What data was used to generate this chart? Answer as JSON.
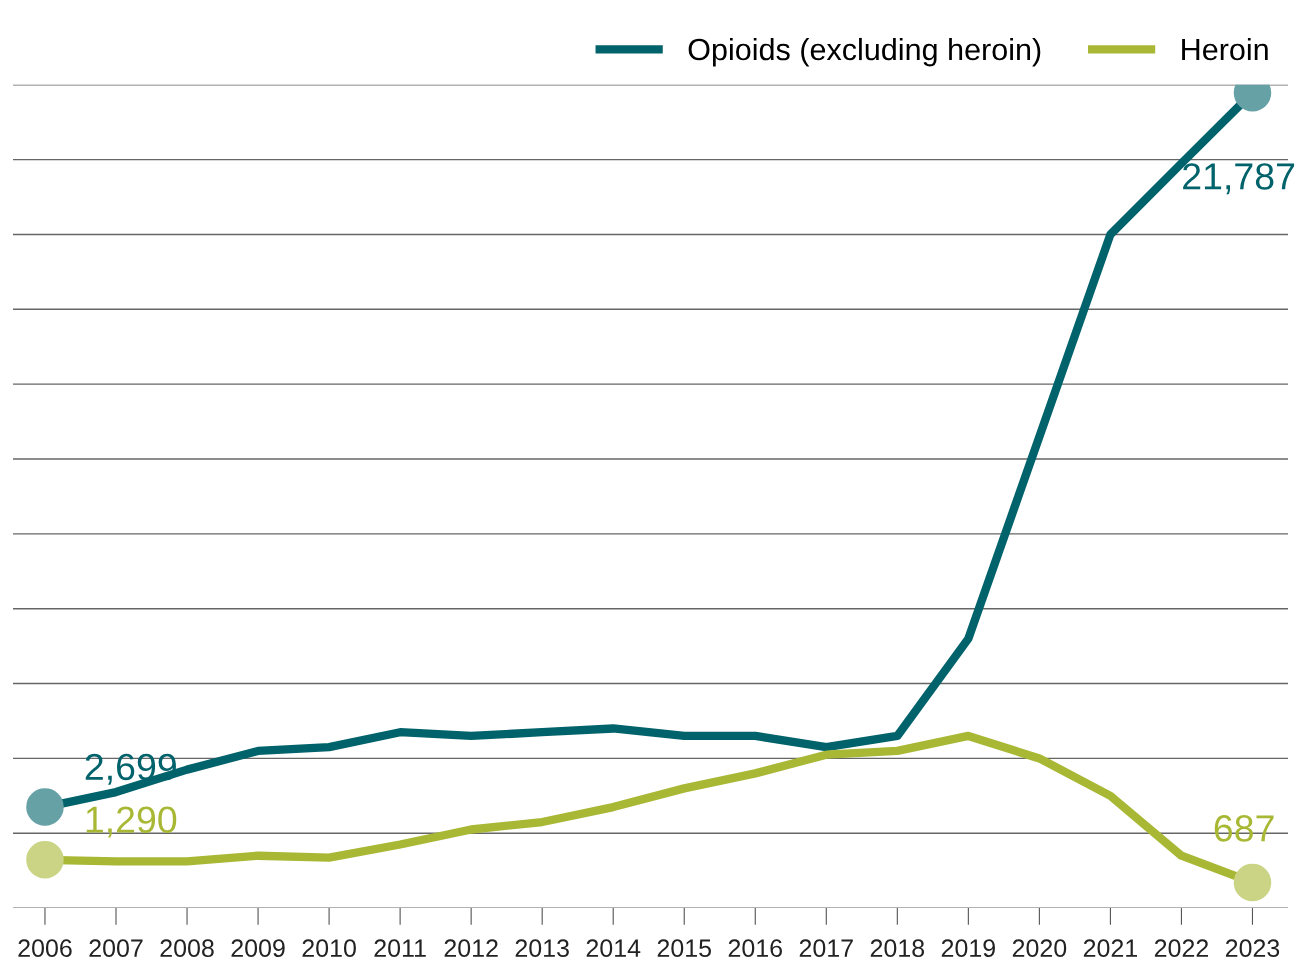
{
  "chart_data": {
    "type": "line",
    "categories": [
      "2006",
      "2007",
      "2008",
      "2009",
      "2010",
      "2011",
      "2012",
      "2013",
      "2014",
      "2015",
      "2016",
      "2017",
      "2018",
      "2019",
      "2020",
      "2021",
      "2022",
      "2023"
    ],
    "series": [
      {
        "name": "Opioids (excluding heroin)",
        "color": "#00626a",
        "values": [
          2699,
          3100,
          3700,
          4200,
          4300,
          4700,
          4600,
          4700,
          4800,
          4600,
          4600,
          4300,
          4600,
          7200,
          12600,
          18000,
          19900,
          21787
        ],
        "value_labels": [
          "2,699",
          null,
          null,
          null,
          null,
          null,
          null,
          null,
          null,
          null,
          null,
          null,
          null,
          null,
          null,
          null,
          null,
          "21,787"
        ]
      },
      {
        "name": "Heroin",
        "color": "#a8b834",
        "values": [
          1290,
          1250,
          1250,
          1400,
          1350,
          1700,
          2100,
          2300,
          2700,
          3200,
          3600,
          4100,
          4200,
          4600,
          4000,
          3000,
          1400,
          687
        ],
        "value_labels": [
          "1,290",
          null,
          null,
          null,
          null,
          null,
          null,
          null,
          null,
          null,
          null,
          null,
          null,
          null,
          null,
          null,
          null,
          "687"
        ]
      }
    ],
    "ylim": [
      0,
      22000
    ],
    "yticks": [
      {
        "value": 0,
        "label": null
      },
      {
        "value": 2000,
        "label": null
      },
      {
        "value": 4000,
        "label": null
      },
      {
        "value": 6000,
        "label": null
      },
      {
        "value": 8000,
        "label": null
      },
      {
        "value": 10000,
        "label": null
      },
      {
        "value": 12000,
        "label": null
      },
      {
        "value": 14000,
        "label": null
      },
      {
        "value": 16000,
        "label": null
      },
      {
        "value": 18000,
        "label": null
      },
      {
        "value": 20000,
        "label": null
      },
      {
        "value": 22000,
        "label": null
      }
    ],
    "grid": "y",
    "legend": "top right",
    "tick_labels": "x",
    "line_style": "solid"
  }
}
